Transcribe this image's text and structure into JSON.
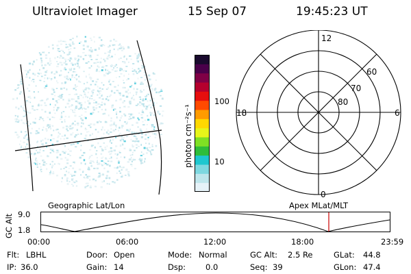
{
  "header": {
    "instrument": "Ultraviolet Imager",
    "date": "15 Sep 07",
    "time": "19:45:23 UT"
  },
  "colorbar": {
    "unit_label": "photon cm⁻²s⁻¹",
    "ticks": [
      "100",
      "10"
    ],
    "colors": [
      "#e6f2f8",
      "#bfe6ec",
      "#7ed8e0",
      "#1ec7cf",
      "#2ebd3a",
      "#7fe024",
      "#e7f51a",
      "#ffd800",
      "#ff9b00",
      "#ff4a00",
      "#e60e0e",
      "#b5002e",
      "#800046",
      "#4a004a",
      "#1a0a2e"
    ]
  },
  "polar_plot": {
    "mlt_labels": {
      "top": "12",
      "left": "18",
      "right": "6",
      "bottom": "0"
    },
    "lat_labels": [
      "60",
      "70",
      "80"
    ]
  },
  "timeline": {
    "y_axis_title": "GC Alt",
    "y_ticks": [
      "9.0",
      "1.8"
    ],
    "left_caption": "Geographic Lat/Lon",
    "right_caption": "Apex MLat/MLT",
    "x_ticks": [
      "00:00",
      "06:00",
      "12:00",
      "18:00",
      "23:59"
    ],
    "current_marker_color": "#cc0000"
  },
  "info": {
    "row1": [
      {
        "label": "Flt:",
        "value": "LBHL"
      },
      {
        "label": "Door:",
        "value": "Open"
      },
      {
        "label": "Mode:",
        "value": "Normal"
      },
      {
        "label": "GC Alt:",
        "value": "2.5 Re"
      },
      {
        "label": "GLat:",
        "value": "44.8"
      }
    ],
    "row2": [
      {
        "label": "IP:",
        "value": "36.0"
      },
      {
        "label": "Gain:",
        "value": "14"
      },
      {
        "label": "Dsp:",
        "value": "0.0"
      },
      {
        "label": "Seq:",
        "value": "39"
      },
      {
        "label": "GLon:",
        "value": "47.4"
      }
    ]
  }
}
